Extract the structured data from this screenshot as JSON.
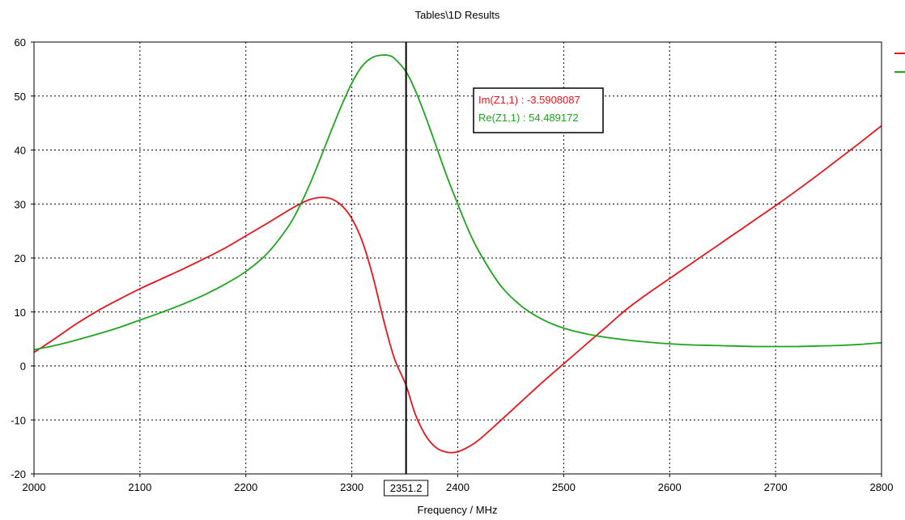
{
  "chart_data": {
    "type": "line",
    "title": "Tables\\1D Results",
    "xlabel": "Frequency / MHz",
    "ylabel": "",
    "xlim": [
      2000,
      2800
    ],
    "ylim": [
      -20,
      60
    ],
    "x_ticks": [
      2000,
      2100,
      2200,
      2300,
      2400,
      2500,
      2600,
      2700,
      2800
    ],
    "y_ticks": [
      -20,
      -10,
      0,
      10,
      20,
      30,
      40,
      50,
      60
    ],
    "grid": true,
    "legend": "top-right (clipped)",
    "marker": {
      "x": 2351.2,
      "label": "2351.2",
      "readouts": [
        {
          "text": "Im(Z1,1) : -3.5908087",
          "color": "#e8141a"
        },
        {
          "text": "Re(Z1,1) : 54.489172",
          "color": "#1ea51e"
        }
      ]
    },
    "series": [
      {
        "color": "#e8141a",
        "x": [
          2000,
          2020,
          2040,
          2060,
          2080,
          2100,
          2120,
          2140,
          2160,
          2180,
          2200,
          2220,
          2240,
          2250,
          2260,
          2270,
          2280,
          2290,
          2300,
          2310,
          2320,
          2330,
          2340,
          2351.2,
          2360,
          2370,
          2380,
          2390,
          2400,
          2410,
          2420,
          2440,
          2460,
          2480,
          2500,
          2520,
          2540,
          2560,
          2580,
          2600,
          2620,
          2640,
          2660,
          2680,
          2700,
          2720,
          2740,
          2760,
          2780,
          2800
        ],
        "values": [
          2.5,
          5.1,
          7.8,
          10.2,
          12.3,
          14.3,
          16.1,
          17.9,
          19.8,
          21.8,
          24.1,
          26.4,
          28.8,
          29.9,
          30.8,
          31.2,
          31.0,
          29.8,
          27.3,
          23.0,
          16.5,
          8.5,
          1.5,
          -3.6,
          -9.0,
          -13.0,
          -15.2,
          -16.0,
          -15.9,
          -15.0,
          -13.7,
          -10.2,
          -6.6,
          -3.0,
          0.4,
          3.8,
          7.2,
          10.6,
          13.5,
          16.2,
          18.9,
          21.6,
          24.3,
          27.0,
          29.7,
          32.5,
          35.4,
          38.4,
          41.4,
          44.5
        ]
      },
      {
        "color": "#1ea51e",
        "x": [
          2000,
          2020,
          2040,
          2060,
          2080,
          2100,
          2120,
          2140,
          2160,
          2180,
          2200,
          2220,
          2240,
          2250,
          2260,
          2270,
          2280,
          2290,
          2300,
          2310,
          2320,
          2330,
          2335,
          2340,
          2351.2,
          2360,
          2370,
          2380,
          2390,
          2400,
          2410,
          2420,
          2440,
          2460,
          2480,
          2500,
          2520,
          2540,
          2560,
          2580,
          2600,
          2620,
          2640,
          2660,
          2680,
          2700,
          2720,
          2740,
          2760,
          2780,
          2800
        ],
        "values": [
          3.0,
          3.8,
          4.8,
          5.9,
          7.1,
          8.5,
          9.9,
          11.4,
          13.1,
          15.1,
          17.5,
          20.8,
          25.8,
          29.3,
          33.5,
          38.3,
          43.3,
          48.1,
          52.4,
          55.6,
          57.2,
          57.6,
          57.5,
          57.0,
          54.5,
          51.0,
          46.0,
          40.5,
          35.0,
          30.0,
          25.2,
          21.2,
          15.0,
          11.1,
          8.6,
          7.0,
          6.0,
          5.3,
          4.8,
          4.4,
          4.1,
          3.9,
          3.8,
          3.7,
          3.6,
          3.6,
          3.6,
          3.7,
          3.8,
          4.0,
          4.3
        ]
      }
    ]
  }
}
